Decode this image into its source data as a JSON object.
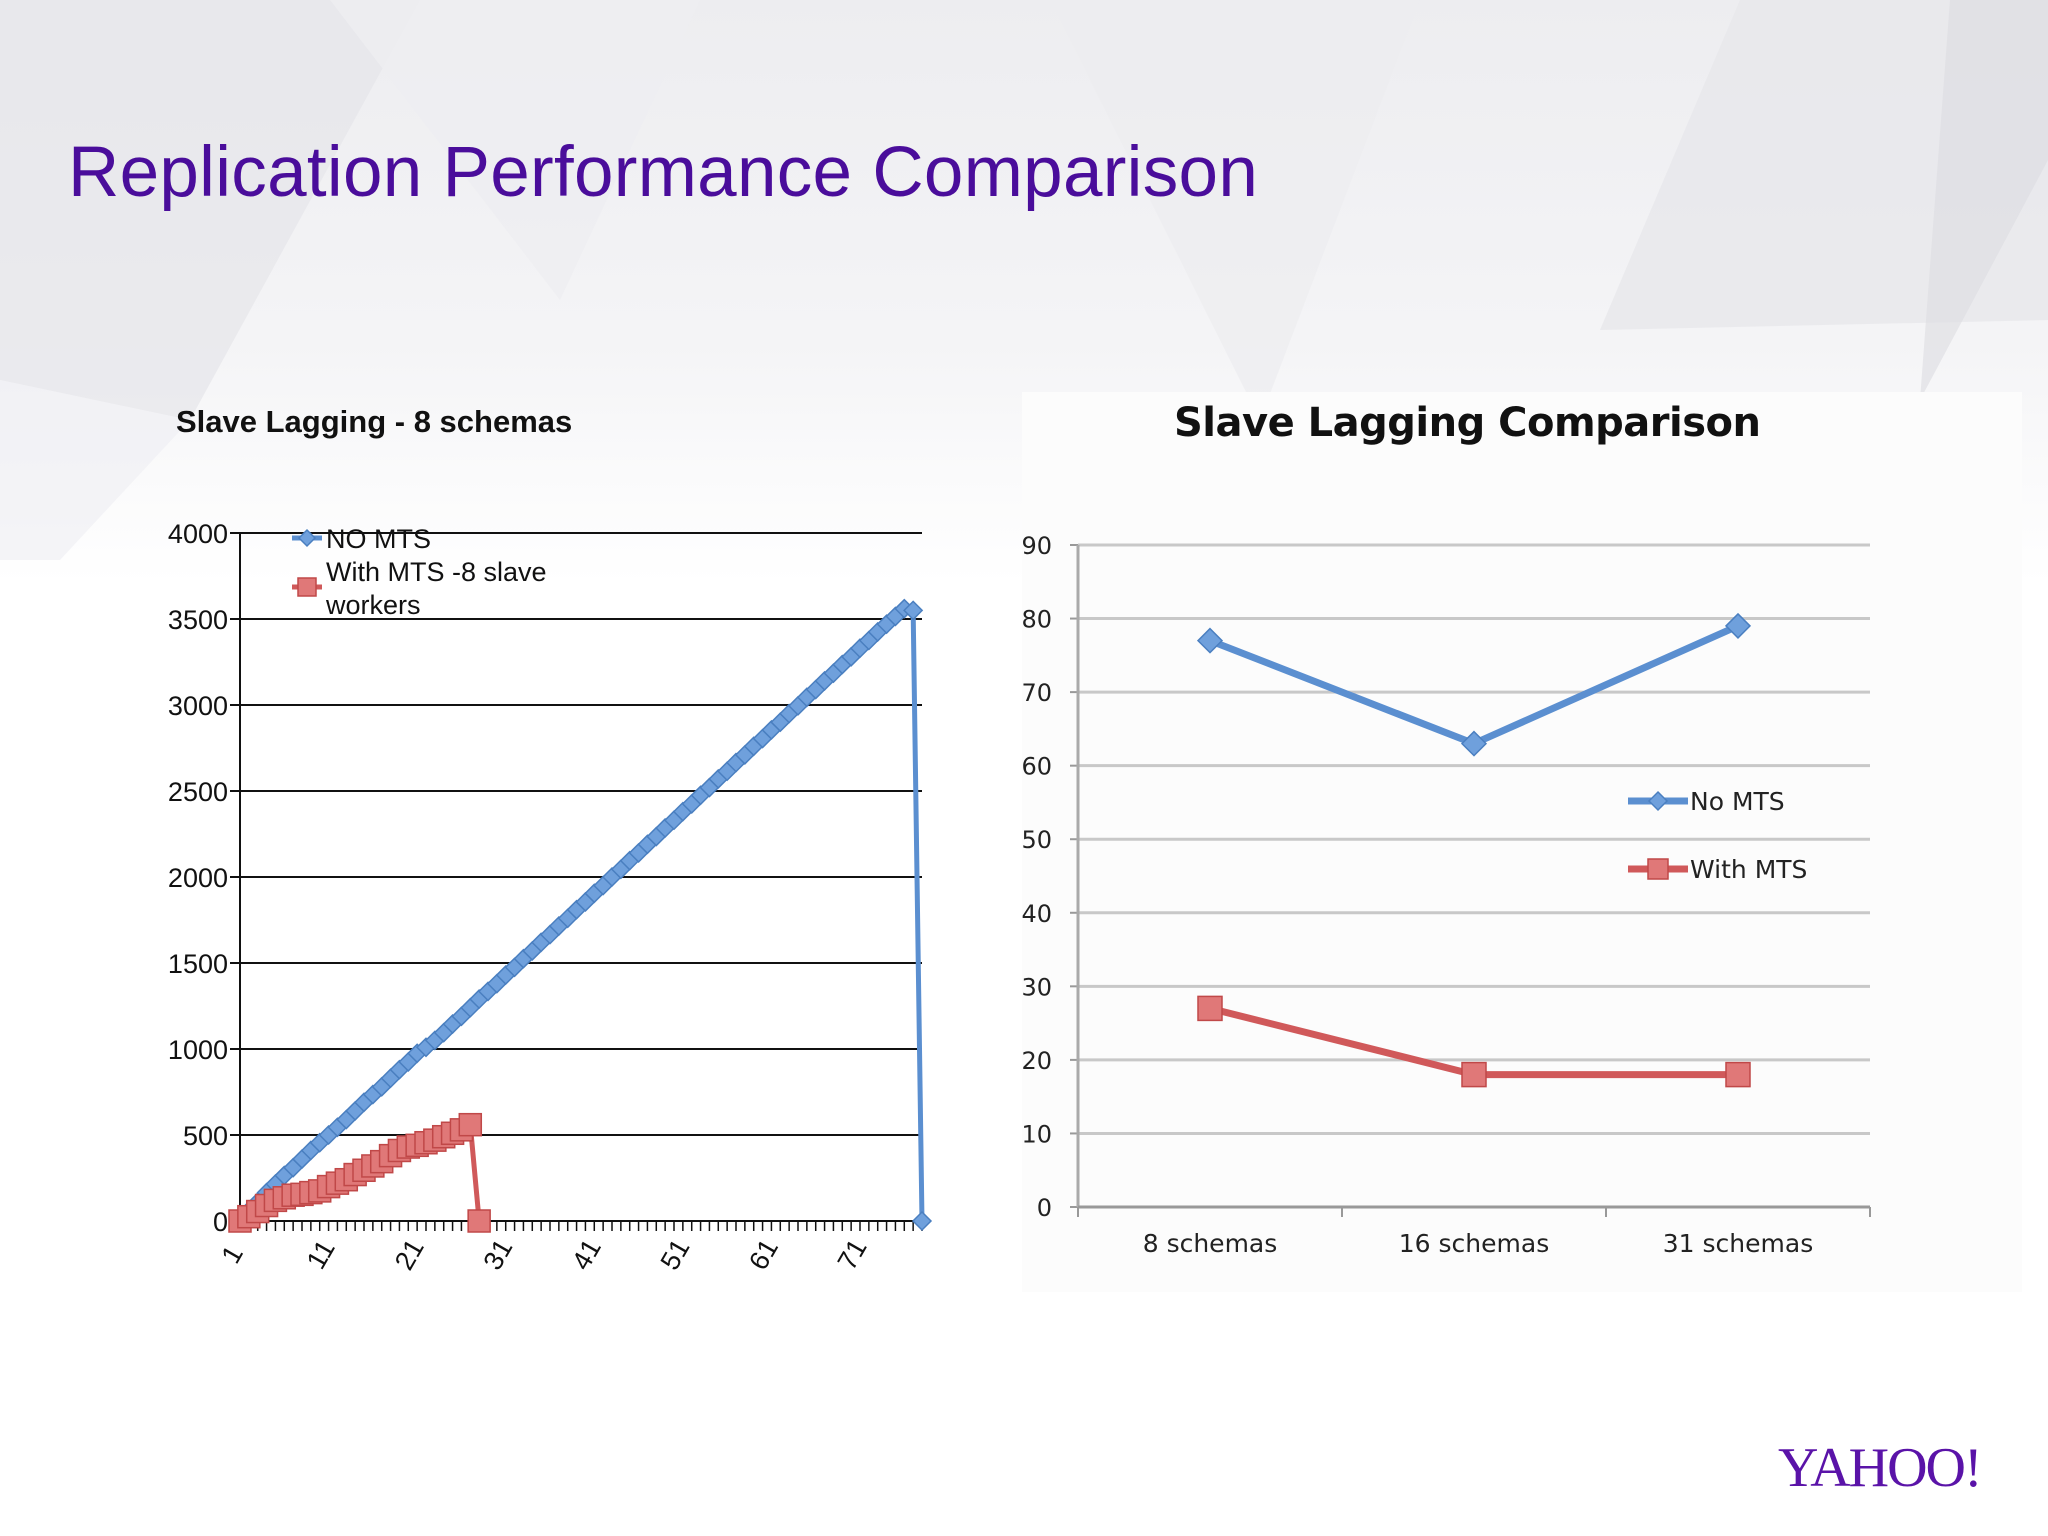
{
  "slide": {
    "title": "Replication Performance Comparison",
    "logo_text": "YAHOO!"
  },
  "colors": {
    "title": "#4a0d9b",
    "blue_series": "#5b8fd0",
    "red_series": "#d0595a",
    "logo": "#5a13a8"
  },
  "chart_data": [
    {
      "type": "line",
      "title": "Slave Lagging - 8 schemas",
      "xlabel": "",
      "ylabel": "",
      "x_ticks": [
        "1",
        "11",
        "21",
        "31",
        "41",
        "51",
        "61",
        "71"
      ],
      "xlim": [
        1,
        78
      ],
      "ylim": [
        0,
        4000
      ],
      "y_ticks": [
        0,
        500,
        1000,
        1500,
        2000,
        2500,
        3000,
        3500,
        4000
      ],
      "grid": true,
      "legend": "top-left",
      "series": [
        {
          "name": "NO MTS",
          "marker": "diamond",
          "x": [
            1,
            2,
            3,
            4,
            5,
            6,
            7,
            8,
            9,
            10,
            11,
            12,
            13,
            14,
            15,
            16,
            17,
            18,
            19,
            20,
            21,
            22,
            23,
            24,
            25,
            26,
            27,
            28,
            29,
            30,
            31,
            32,
            33,
            34,
            35,
            36,
            37,
            38,
            39,
            40,
            41,
            42,
            43,
            44,
            45,
            46,
            47,
            48,
            49,
            50,
            51,
            52,
            53,
            54,
            55,
            56,
            57,
            58,
            59,
            60,
            61,
            62,
            63,
            64,
            65,
            66,
            67,
            68,
            69,
            70,
            71,
            72,
            73,
            74,
            75,
            76,
            77,
            78
          ],
          "y": [
            0,
            60,
            110,
            165,
            215,
            265,
            310,
            360,
            410,
            455,
            500,
            545,
            590,
            640,
            690,
            735,
            780,
            830,
            880,
            925,
            975,
            1010,
            1050,
            1095,
            1145,
            1190,
            1240,
            1290,
            1335,
            1380,
            1430,
            1475,
            1525,
            1570,
            1620,
            1665,
            1715,
            1760,
            1810,
            1855,
            1905,
            1950,
            2000,
            2045,
            2095,
            2140,
            2190,
            2235,
            2285,
            2330,
            2380,
            2425,
            2475,
            2520,
            2570,
            2615,
            2665,
            2710,
            2760,
            2805,
            2855,
            2900,
            2950,
            2995,
            3045,
            3090,
            3140,
            3185,
            3235,
            3280,
            3330,
            3375,
            3425,
            3470,
            3515,
            3560,
            3550,
            0
          ]
        },
        {
          "name": "With MTS -8 slave workers",
          "marker": "square",
          "x": [
            1,
            2,
            3,
            4,
            5,
            6,
            7,
            8,
            9,
            10,
            11,
            12,
            13,
            14,
            15,
            16,
            17,
            18,
            19,
            20,
            21,
            22,
            23,
            24,
            25,
            26,
            27,
            28
          ],
          "y": [
            0,
            25,
            55,
            90,
            120,
            135,
            150,
            155,
            165,
            175,
            200,
            220,
            240,
            270,
            295,
            320,
            345,
            380,
            410,
            430,
            440,
            455,
            470,
            490,
            510,
            530,
            560,
            0
          ]
        }
      ]
    },
    {
      "type": "line",
      "title": "Slave Lagging  Comparison",
      "xlabel": "",
      "ylabel": "",
      "categories": [
        "8 schemas",
        "16 schemas",
        "31 schemas"
      ],
      "ylim": [
        0,
        90
      ],
      "y_ticks": [
        0,
        10,
        20,
        30,
        40,
        50,
        60,
        70,
        80,
        90
      ],
      "grid": true,
      "legend": "right",
      "series": [
        {
          "name": "No MTS",
          "marker": "diamond",
          "values": [
            77,
            63,
            79
          ]
        },
        {
          "name": "With MTS",
          "marker": "square",
          "values": [
            27,
            18,
            18
          ]
        }
      ]
    }
  ]
}
